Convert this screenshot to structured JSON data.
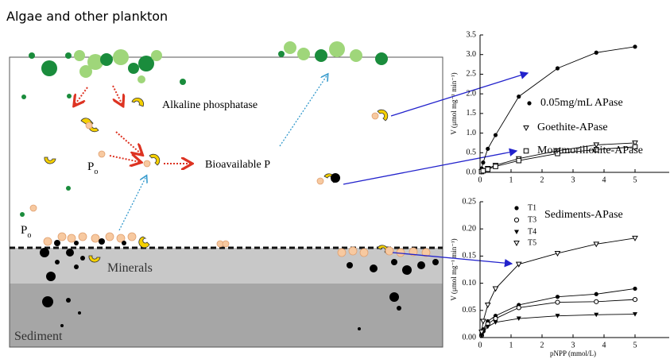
{
  "diagram": {
    "title": "Algae and other plankton",
    "enzyme_label": "Alkaline phosphatase",
    "bioavailable_label": "Bioavailable P",
    "po_label_1": {
      "main": "P",
      "sub": "o"
    },
    "po_label_2": {
      "main": "P",
      "sub": "o"
    },
    "minerals_label": "Minerals",
    "sediment_label": "Sediment"
  },
  "chart_data": [
    {
      "type": "scatter",
      "ylabel": "V (μmol mg⁻¹ min⁻¹)",
      "xlim": [
        0,
        6
      ],
      "ylim": [
        0,
        3.5
      ],
      "xticks": [
        0,
        1,
        2,
        3,
        4,
        5
      ],
      "yticks": [
        {
          "value": 0,
          "label": "0.0"
        },
        {
          "value": 0.5,
          "label": "0.5"
        },
        {
          "value": 1,
          "label": "1.0"
        },
        {
          "value": 1.5,
          "label": "1.5"
        },
        {
          "value": 2,
          "label": "2.0"
        },
        {
          "value": 2.5,
          "label": "2.5"
        },
        {
          "value": 3,
          "label": "3.0"
        },
        {
          "value": 3.5,
          "label": "3.5"
        }
      ],
      "x": [
        0.05,
        0.1,
        0.25,
        0.5,
        1.25,
        2.5,
        3.75,
        5
      ],
      "series": [
        {
          "name": "0.05mg/mL APase",
          "color": "#000000",
          "marker": "circle-filled",
          "values": [
            0.1,
            0.25,
            0.6,
            0.95,
            1.93,
            2.65,
            3.05,
            3.2
          ]
        },
        {
          "name": "Goethite-APase",
          "color": "#000000",
          "marker": "triangle-open",
          "values": [
            0.02,
            0.05,
            0.1,
            0.18,
            0.35,
            0.55,
            0.7,
            0.75
          ]
        },
        {
          "name": "Montmorillonite-APase",
          "color": "#000000",
          "marker": "square-dot",
          "values": [
            0.02,
            0.04,
            0.08,
            0.15,
            0.3,
            0.48,
            0.58,
            0.65
          ]
        }
      ]
    },
    {
      "type": "scatter",
      "title": "Sediments-APase",
      "ylabel": "V (μmol mg⁻¹ min⁻¹)",
      "xlabel": "pNPP (mmol/L)",
      "xlim": [
        0,
        6
      ],
      "ylim": [
        0,
        0.25
      ],
      "xticks": [
        0,
        1,
        2,
        3,
        4,
        5
      ],
      "yticks": [
        {
          "value": 0,
          "label": "0.00"
        },
        {
          "value": 0.05,
          "label": "0.05"
        },
        {
          "value": 0.1,
          "label": "0.10"
        },
        {
          "value": 0.15,
          "label": "0.15"
        },
        {
          "value": 0.2,
          "label": "0.20"
        },
        {
          "value": 0.25,
          "label": "0.25"
        }
      ],
      "x": [
        0.05,
        0.1,
        0.25,
        0.5,
        1.25,
        2.5,
        3.75,
        5
      ],
      "series": [
        {
          "name": "T1",
          "color": "#000000",
          "marker": "circle-filled",
          "values": [
            0.005,
            0.015,
            0.03,
            0.04,
            0.06,
            0.075,
            0.08,
            0.09
          ]
        },
        {
          "name": "T3",
          "color": "#000000",
          "marker": "circle-open",
          "values": [
            0.004,
            0.012,
            0.025,
            0.035,
            0.055,
            0.065,
            0.066,
            0.07
          ]
        },
        {
          "name": "T4",
          "color": "#000000",
          "marker": "triangle-filled",
          "values": [
            0.003,
            0.01,
            0.02,
            0.028,
            0.035,
            0.04,
            0.042,
            0.043
          ]
        },
        {
          "name": "T5",
          "color": "#000000",
          "marker": "triangle-open",
          "values": [
            0.01,
            0.03,
            0.06,
            0.09,
            0.135,
            0.155,
            0.172,
            0.183
          ]
        }
      ]
    }
  ]
}
